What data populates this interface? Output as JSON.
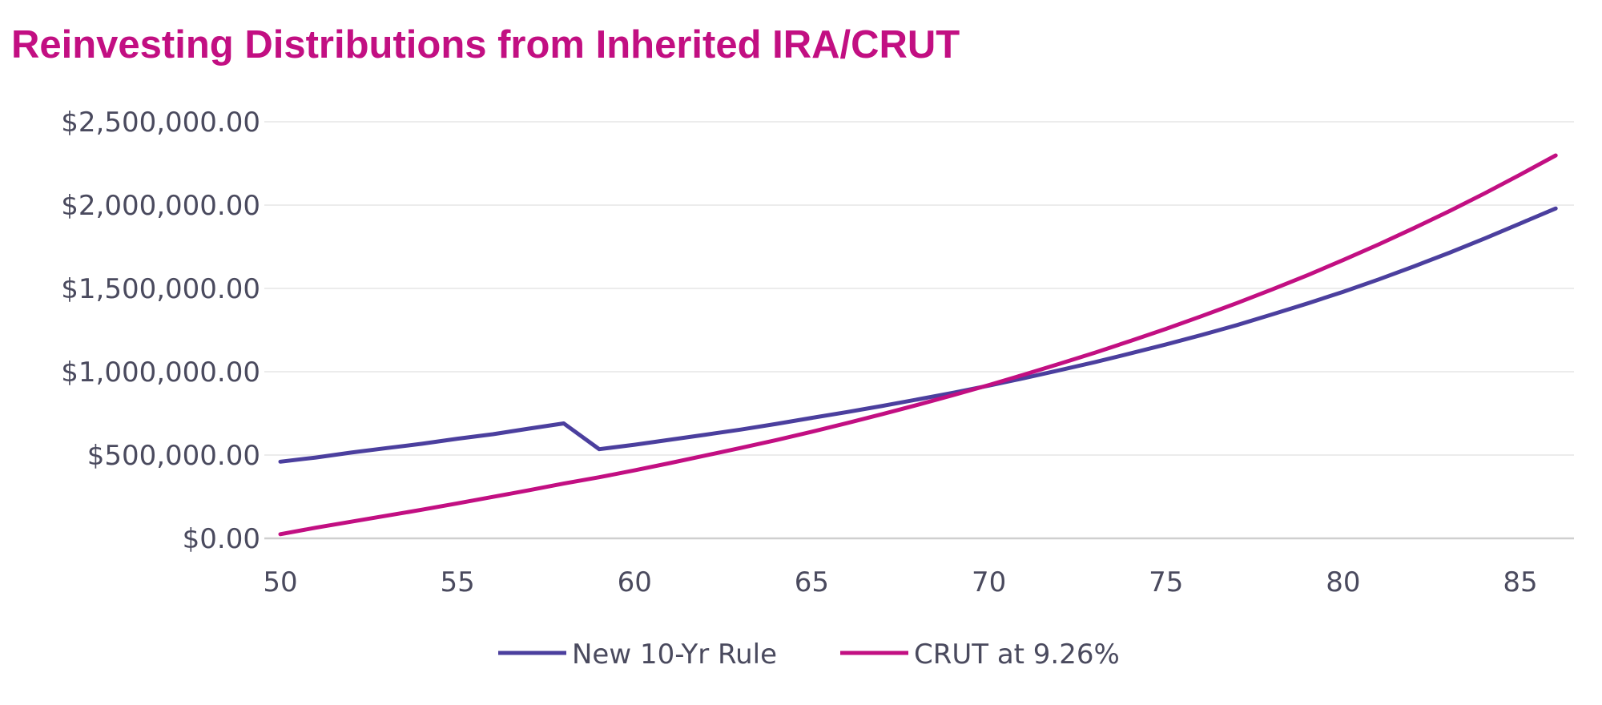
{
  "title": "Reinvesting Distributions from Inherited IRA/CRUT",
  "colors": {
    "title": "#c20f82",
    "series_1": "#4b3f9e",
    "series_2": "#c20f82",
    "grid": "#e6e6e6",
    "axis": "#cfcfcf",
    "text": "#4a4a5e"
  },
  "chart_data": {
    "type": "line",
    "title": "Reinvesting Distributions from Inherited IRA/CRUT",
    "xlabel": "",
    "ylabel": "",
    "xlim": [
      50,
      86
    ],
    "ylim": [
      0,
      2500000
    ],
    "x_ticks": [
      50,
      55,
      60,
      65,
      70,
      75,
      80,
      85
    ],
    "x_tick_labels": [
      "50",
      "55",
      "60",
      "65",
      "70",
      "75",
      "80",
      "85"
    ],
    "y_ticks": [
      0,
      500000,
      1000000,
      1500000,
      2000000,
      2500000
    ],
    "y_tick_labels": [
      "$0.00",
      "$500,000.00",
      "$1,000,000.00",
      "$1,500,000.00",
      "$2,000,000.00",
      "$2,500,000.00"
    ],
    "grid": true,
    "legend": "bottom",
    "x": [
      50,
      51,
      52,
      53,
      54,
      55,
      56,
      57,
      58,
      59,
      60,
      61,
      62,
      63,
      64,
      65,
      66,
      67,
      68,
      69,
      70,
      71,
      72,
      73,
      74,
      75,
      76,
      77,
      78,
      79,
      80,
      81,
      82,
      83,
      84,
      85,
      86
    ],
    "series": [
      {
        "name": "New 10-Yr Rule",
        "values": [
          460000,
          485000,
          515000,
          542000,
          568000,
          598000,
          625000,
          658000,
          690000,
          535000,
          562000,
          592000,
          622000,
          653000,
          687000,
          723000,
          758000,
          795000,
          834000,
          874000,
          917000,
          962000,
          1009000,
          1058000,
          1110000,
          1164000,
          1220000,
          1280000,
          1344000,
          1410000,
          1480000,
          1554000,
          1632000,
          1714000,
          1800000,
          1890000,
          1980000
        ]
      },
      {
        "name": "CRUT at 9.26%",
        "values": [
          25000,
          64000,
          100000,
          136000,
          172000,
          210000,
          249000,
          288000,
          329000,
          367000,
          408000,
          452000,
          497000,
          543000,
          590000,
          640000,
          692000,
          746000,
          802000,
          860000,
          920000,
          983000,
          1048000,
          1115000,
          1185000,
          1257000,
          1333000,
          1412000,
          1494000,
          1580000,
          1670000,
          1764000,
          1862000,
          1964000,
          2071000,
          2183000,
          2298000
        ]
      }
    ]
  }
}
